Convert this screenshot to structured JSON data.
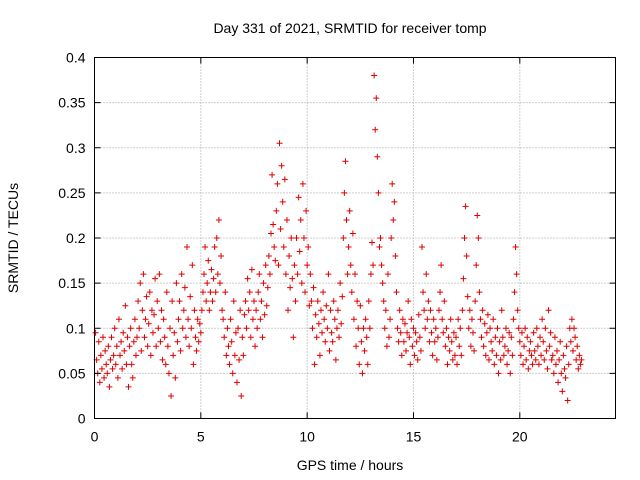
{
  "chart_data": {
    "type": "scatter",
    "title": "Day 331 of 2021, SRMTID for receiver tomp",
    "xlabel": "GPS time / hours",
    "ylabel": "SRMTID / TECUs",
    "xlim": [
      0,
      24.5
    ],
    "ylim": [
      0,
      0.4
    ],
    "xticks": [
      0,
      5,
      10,
      15,
      20
    ],
    "xtick_labels": [
      "0",
      "5",
      "10",
      "15",
      "20"
    ],
    "yticks": [
      0,
      0.05,
      0.1,
      0.15,
      0.2,
      0.25,
      0.3,
      0.35,
      0.4
    ],
    "ytick_labels": [
      "0",
      "0.05",
      "0.1",
      "0.15",
      "0.2",
      "0.25",
      "0.3",
      "0.35",
      "0.4"
    ],
    "grid": true,
    "marker": "+",
    "color": "#e00000",
    "series": [
      {
        "name": "SRMTID",
        "x": [
          0.05,
          0.1,
          0.15,
          0.2,
          0.25,
          0.3,
          0.35,
          0.4,
          0.45,
          0.5,
          0.55,
          0.6,
          0.65,
          0.7,
          0.75,
          0.8,
          0.85,
          0.9,
          0.95,
          1.0,
          1.05,
          1.1,
          1.15,
          1.2,
          1.25,
          1.3,
          1.35,
          1.4,
          1.45,
          1.5,
          1.55,
          1.6,
          1.65,
          1.7,
          1.75,
          1.8,
          1.85,
          1.9,
          1.95,
          2.0,
          2.05,
          2.1,
          2.15,
          2.2,
          2.25,
          2.3,
          2.35,
          2.4,
          2.45,
          2.5,
          2.55,
          2.6,
          2.65,
          2.7,
          2.75,
          2.8,
          2.85,
          2.9,
          2.95,
          3.0,
          3.05,
          3.1,
          3.15,
          3.2,
          3.25,
          3.3,
          3.35,
          3.4,
          3.45,
          3.5,
          3.55,
          3.6,
          3.65,
          3.7,
          3.75,
          3.8,
          3.85,
          3.9,
          3.95,
          4.0,
          4.05,
          4.1,
          4.15,
          4.2,
          4.25,
          4.3,
          4.35,
          4.4,
          4.45,
          4.5,
          4.55,
          4.6,
          4.65,
          4.7,
          4.75,
          4.8,
          4.85,
          4.9,
          4.95,
          5.0,
          5.05,
          5.1,
          5.15,
          5.2,
          5.25,
          5.3,
          5.35,
          5.4,
          5.45,
          5.5,
          5.55,
          5.6,
          5.65,
          5.7,
          5.75,
          5.8,
          5.85,
          5.9,
          5.95,
          6.0,
          6.05,
          6.1,
          6.15,
          6.2,
          6.25,
          6.3,
          6.35,
          6.4,
          6.45,
          6.5,
          6.55,
          6.6,
          6.65,
          6.7,
          6.75,
          6.8,
          6.85,
          6.9,
          6.95,
          7.0,
          7.05,
          7.1,
          7.15,
          7.2,
          7.25,
          7.3,
          7.35,
          7.4,
          7.45,
          7.5,
          7.55,
          7.6,
          7.65,
          7.7,
          7.75,
          7.8,
          7.85,
          7.9,
          7.95,
          8.0,
          8.05,
          8.1,
          8.15,
          8.2,
          8.25,
          8.3,
          8.35,
          8.4,
          8.45,
          8.5,
          8.55,
          8.6,
          8.65,
          8.7,
          8.75,
          8.8,
          8.85,
          8.9,
          8.95,
          9.0,
          9.05,
          9.1,
          9.15,
          9.2,
          9.25,
          9.3,
          9.35,
          9.4,
          9.45,
          9.5,
          9.55,
          9.6,
          9.65,
          9.7,
          9.75,
          9.8,
          9.85,
          9.9,
          9.95,
          10.0,
          10.05,
          10.1,
          10.15,
          10.2,
          10.25,
          10.3,
          10.35,
          10.4,
          10.45,
          10.5,
          10.55,
          10.6,
          10.65,
          10.7,
          10.75,
          10.8,
          10.85,
          10.9,
          10.95,
          11.0,
          11.05,
          11.1,
          11.15,
          11.2,
          11.25,
          11.3,
          11.35,
          11.4,
          11.45,
          11.5,
          11.55,
          11.6,
          11.65,
          11.7,
          11.75,
          11.8,
          11.85,
          11.9,
          11.95,
          12.0,
          12.05,
          12.1,
          12.15,
          12.2,
          12.25,
          12.3,
          12.35,
          12.4,
          12.45,
          12.5,
          12.55,
          12.6,
          12.65,
          12.7,
          12.75,
          12.8,
          12.85,
          12.9,
          12.95,
          13.0,
          13.05,
          13.1,
          13.15,
          13.2,
          13.25,
          13.3,
          13.35,
          13.4,
          13.45,
          13.5,
          13.55,
          13.6,
          13.65,
          13.7,
          13.75,
          13.8,
          13.85,
          13.9,
          13.95,
          14.0,
          14.05,
          14.1,
          14.15,
          14.2,
          14.25,
          14.3,
          14.35,
          14.4,
          14.45,
          14.5,
          14.55,
          14.6,
          14.65,
          14.7,
          14.75,
          14.8,
          14.85,
          14.9,
          14.95,
          15.0,
          15.05,
          15.1,
          15.15,
          15.2,
          15.25,
          15.3,
          15.35,
          15.4,
          15.45,
          15.5,
          15.55,
          15.6,
          15.65,
          15.7,
          15.75,
          15.8,
          15.85,
          15.9,
          15.95,
          16.0,
          16.05,
          16.1,
          16.15,
          16.2,
          16.25,
          16.3,
          16.35,
          16.4,
          16.45,
          16.5,
          16.55,
          16.6,
          16.65,
          16.7,
          16.75,
          16.8,
          16.85,
          16.9,
          16.95,
          17.0,
          17.05,
          17.1,
          17.15,
          17.2,
          17.25,
          17.3,
          17.35,
          17.4,
          17.45,
          17.5,
          17.55,
          17.6,
          17.65,
          17.7,
          17.75,
          17.8,
          17.85,
          17.9,
          17.95,
          18.0,
          18.05,
          18.1,
          18.15,
          18.2,
          18.25,
          18.3,
          18.35,
          18.4,
          18.45,
          18.5,
          18.55,
          18.6,
          18.65,
          18.7,
          18.75,
          18.8,
          18.85,
          18.9,
          18.95,
          19.0,
          19.05,
          19.1,
          19.15,
          19.2,
          19.25,
          19.3,
          19.35,
          19.4,
          19.45,
          19.5,
          19.55,
          19.6,
          19.65,
          19.7,
          19.75,
          19.8,
          19.85,
          19.9,
          19.95,
          20.0,
          20.05,
          20.1,
          20.15,
          20.2,
          20.25,
          20.3,
          20.35,
          20.4,
          20.45,
          20.5,
          20.55,
          20.6,
          20.65,
          20.7,
          20.75,
          20.8,
          20.85,
          20.9,
          20.95,
          21.0,
          21.05,
          21.1,
          21.15,
          21.2,
          21.25,
          21.3,
          21.35,
          21.4,
          21.45,
          21.5,
          21.55,
          21.6,
          21.65,
          21.7,
          21.75,
          21.8,
          21.85,
          21.9,
          21.95,
          22.0,
          22.05,
          22.1,
          22.15,
          22.2,
          22.25,
          22.3,
          22.35,
          22.4,
          22.45,
          22.5,
          22.55,
          22.6,
          22.65,
          22.7,
          22.75,
          22.8,
          22.85,
          22.9
        ],
        "y": [
          0.095,
          0.065,
          0.05,
          0.085,
          0.04,
          0.07,
          0.055,
          0.09,
          0.045,
          0.075,
          0.06,
          0.05,
          0.08,
          0.035,
          0.065,
          0.09,
          0.055,
          0.07,
          0.1,
          0.06,
          0.08,
          0.045,
          0.11,
          0.07,
          0.085,
          0.055,
          0.095,
          0.075,
          0.125,
          0.06,
          0.09,
          0.035,
          0.08,
          0.1,
          0.06,
          0.045,
          0.085,
          0.11,
          0.07,
          0.09,
          0.13,
          0.1,
          0.15,
          0.075,
          0.12,
          0.16,
          0.09,
          0.11,
          0.135,
          0.08,
          0.105,
          0.14,
          0.07,
          0.12,
          0.095,
          0.115,
          0.155,
          0.08,
          0.13,
          0.1,
          0.16,
          0.085,
          0.12,
          0.065,
          0.11,
          0.09,
          0.06,
          0.14,
          0.08,
          0.05,
          0.1,
          0.025,
          0.13,
          0.07,
          0.095,
          0.045,
          0.15,
          0.085,
          0.11,
          0.13,
          0.075,
          0.16,
          0.1,
          0.12,
          0.145,
          0.09,
          0.19,
          0.11,
          0.08,
          0.135,
          0.1,
          0.17,
          0.06,
          0.12,
          0.09,
          0.075,
          0.11,
          0.085,
          0.105,
          0.095,
          0.12,
          0.14,
          0.16,
          0.19,
          0.13,
          0.15,
          0.175,
          0.12,
          0.14,
          0.165,
          0.13,
          0.155,
          0.19,
          0.14,
          0.2,
          0.16,
          0.22,
          0.15,
          0.18,
          0.12,
          0.11,
          0.09,
          0.14,
          0.07,
          0.1,
          0.08,
          0.06,
          0.11,
          0.085,
          0.05,
          0.13,
          0.07,
          0.095,
          0.04,
          0.1,
          0.065,
          0.12,
          0.025,
          0.09,
          0.07,
          0.115,
          0.13,
          0.1,
          0.155,
          0.12,
          0.14,
          0.09,
          0.165,
          0.11,
          0.13,
          0.08,
          0.12,
          0.1,
          0.14,
          0.16,
          0.11,
          0.13,
          0.09,
          0.15,
          0.115,
          0.17,
          0.125,
          0.145,
          0.18,
          0.16,
          0.205,
          0.27,
          0.215,
          0.19,
          0.175,
          0.23,
          0.26,
          0.17,
          0.305,
          0.21,
          0.28,
          0.24,
          0.19,
          0.265,
          0.16,
          0.22,
          0.12,
          0.18,
          0.145,
          0.2,
          0.155,
          0.09,
          0.17,
          0.13,
          0.2,
          0.16,
          0.245,
          0.185,
          0.22,
          0.15,
          0.26,
          0.2,
          0.14,
          0.23,
          0.17,
          0.19,
          0.125,
          0.16,
          0.13,
          0.1,
          0.145,
          0.06,
          0.115,
          0.09,
          0.13,
          0.105,
          0.07,
          0.12,
          0.095,
          0.14,
          0.11,
          0.085,
          0.125,
          0.1,
          0.16,
          0.075,
          0.12,
          0.095,
          0.085,
          0.13,
          0.11,
          0.065,
          0.1,
          0.12,
          0.09,
          0.15,
          0.105,
          0.135,
          0.2,
          0.25,
          0.285,
          0.22,
          0.16,
          0.19,
          0.23,
          0.17,
          0.14,
          0.205,
          0.11,
          0.16,
          0.08,
          0.13,
          0.1,
          0.06,
          0.125,
          0.085,
          0.05,
          0.1,
          0.075,
          0.11,
          0.09,
          0.06,
          0.13,
          0.1,
          0.16,
          0.195,
          0.17,
          0.38,
          0.32,
          0.355,
          0.29,
          0.25,
          0.19,
          0.2,
          0.17,
          0.15,
          0.13,
          0.1,
          0.12,
          0.08,
          0.16,
          0.09,
          0.11,
          0.2,
          0.26,
          0.22,
          0.24,
          0.18,
          0.14,
          0.1,
          0.085,
          0.12,
          0.095,
          0.07,
          0.11,
          0.085,
          0.105,
          0.075,
          0.095,
          0.13,
          0.09,
          0.06,
          0.11,
          0.08,
          0.1,
          0.07,
          0.095,
          0.085,
          0.065,
          0.115,
          0.09,
          0.075,
          0.19,
          0.14,
          0.12,
          0.1,
          0.16,
          0.11,
          0.13,
          0.085,
          0.12,
          0.095,
          0.07,
          0.11,
          0.085,
          0.1,
          0.065,
          0.09,
          0.12,
          0.14,
          0.17,
          0.11,
          0.095,
          0.13,
          0.08,
          0.1,
          0.06,
          0.09,
          0.075,
          0.11,
          0.085,
          0.065,
          0.095,
          0.07,
          0.09,
          0.06,
          0.11,
          0.08,
          0.1,
          0.07,
          0.12,
          0.155,
          0.2,
          0.235,
          0.18,
          0.135,
          0.1,
          0.12,
          0.08,
          0.11,
          0.095,
          0.075,
          0.13,
          0.17,
          0.225,
          0.2,
          0.14,
          0.11,
          0.09,
          0.12,
          0.08,
          0.105,
          0.07,
          0.095,
          0.115,
          0.065,
          0.1,
          0.085,
          0.075,
          0.11,
          0.06,
          0.09,
          0.07,
          0.1,
          0.05,
          0.085,
          0.065,
          0.12,
          0.09,
          0.07,
          0.08,
          0.1,
          0.06,
          0.075,
          0.095,
          0.05,
          0.09,
          0.07,
          0.11,
          0.14,
          0.19,
          0.16,
          0.12,
          0.1,
          0.085,
          0.07,
          0.095,
          0.06,
          0.08,
          0.1,
          0.065,
          0.09,
          0.055,
          0.075,
          0.085,
          0.07,
          0.06,
          0.095,
          0.075,
          0.065,
          0.1,
          0.08,
          0.06,
          0.09,
          0.07,
          0.11,
          0.085,
          0.065,
          0.1,
          0.075,
          0.055,
          0.12,
          0.08,
          0.095,
          0.065,
          0.07,
          0.05,
          0.09,
          0.06,
          0.075,
          0.04,
          0.065,
          0.085,
          0.05,
          0.03,
          0.07,
          0.055,
          0.045,
          0.08,
          0.02,
          0.06,
          0.1,
          0.085,
          0.11,
          0.075,
          0.1,
          0.09,
          0.065,
          0.08,
          0.055,
          0.07,
          0.06,
          0.065
        ]
      }
    ]
  }
}
